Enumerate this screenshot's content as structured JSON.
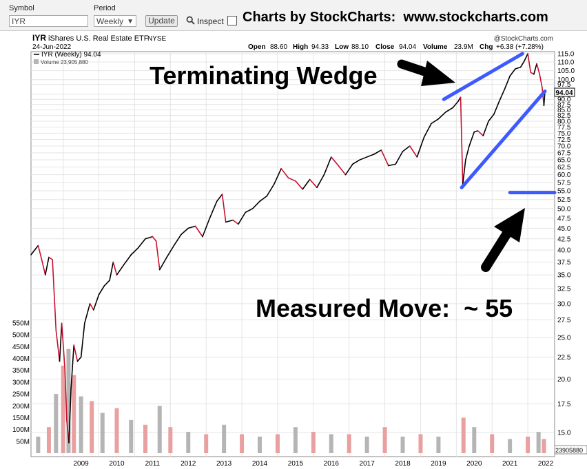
{
  "toolbar": {
    "symbol_label": "Symbol",
    "symbol_value": "IYR",
    "period_label": "Period",
    "period_value": "Weekly",
    "update_label": "Update",
    "inspect_label": "Inspect",
    "brand_text": "Charts by StockCharts:  www.stockcharts.com"
  },
  "header": {
    "ticker": "IYR",
    "name": "iShares U.S. Real Estate ETF",
    "exchange": "NYSE",
    "date": "24-Jun-2022",
    "copyright": "@StockCharts.com",
    "open_label": "Open",
    "open": "88.60",
    "high_label": "High",
    "high": "94.33",
    "low_label": "Low",
    "low": "88.10",
    "close_label": "Close",
    "close": "94.04",
    "volume_label": "Volume",
    "volume": "23.9M",
    "chg_label": "Chg",
    "chg": "+6.38 (+7.28%)",
    "legend_price": "IYR (Weekly) 94.04",
    "legend_volume": "Volume 23,905,880"
  },
  "annotations": {
    "wedge_title": "Terminating Wedge",
    "measured_move": "Measured Move:  ~ 55"
  },
  "colors": {
    "up": "#000000",
    "down": "#c8102e",
    "trendline": "#3d5afe",
    "volume_up": "#b5b5b5",
    "volume_down": "#e8a0a0"
  },
  "chart_data": {
    "type": "line",
    "title": "IYR iShares U.S. Real Estate ETF NYSE",
    "scale": "log",
    "price_ticks": [
      "115.0",
      "110.0",
      "105.0",
      "100.0",
      "97.5",
      "92.5",
      "90.0",
      "87.5",
      "85.0",
      "82.5",
      "80.0",
      "77.5",
      "75.0",
      "72.5",
      "70.0",
      "67.5",
      "65.0",
      "62.5",
      "60.0",
      "57.5",
      "55.0",
      "52.5",
      "50.0",
      "47.5",
      "45.0",
      "42.5",
      "40.0",
      "37.5",
      "35.0",
      "32.5",
      "30.0",
      "27.5",
      "25.0",
      "22.5",
      "20.0",
      "17.5",
      "15.0"
    ],
    "last_price_label": "94.04",
    "volume_ticks": [
      "550M",
      "500M",
      "450M",
      "400M",
      "350M",
      "300M",
      "250M",
      "200M",
      "150M",
      "100M",
      "50M"
    ],
    "volume_last_label": "23905880",
    "x_ticks": [
      "2009",
      "2010",
      "2011",
      "2012",
      "2013",
      "2014",
      "2015",
      "2016",
      "2017",
      "2018",
      "2019",
      "2020",
      "2021",
      "2022"
    ],
    "series": [
      {
        "values": [
          {
            "x": 2008.1,
            "y": 39.0
          },
          {
            "x": 2008.3,
            "y": 41.0
          },
          {
            "x": 2008.4,
            "y": 38.0
          },
          {
            "x": 2008.5,
            "y": 35.0
          },
          {
            "x": 2008.6,
            "y": 38.5
          },
          {
            "x": 2008.7,
            "y": 38.0
          },
          {
            "x": 2008.8,
            "y": 26.0
          },
          {
            "x": 2008.9,
            "y": 22.0
          },
          {
            "x": 2008.96,
            "y": 27.0
          },
          {
            "x": 2009.05,
            "y": 21.0
          },
          {
            "x": 2009.1,
            "y": 16.0
          },
          {
            "x": 2009.16,
            "y": 14.2
          },
          {
            "x": 2009.22,
            "y": 19.0
          },
          {
            "x": 2009.3,
            "y": 24.0
          },
          {
            "x": 2009.4,
            "y": 22.0
          },
          {
            "x": 2009.5,
            "y": 22.5
          },
          {
            "x": 2009.6,
            "y": 27.0
          },
          {
            "x": 2009.75,
            "y": 30.0
          },
          {
            "x": 2009.85,
            "y": 29.0
          },
          {
            "x": 2010.0,
            "y": 31.5
          },
          {
            "x": 2010.15,
            "y": 33.0
          },
          {
            "x": 2010.3,
            "y": 34.0
          },
          {
            "x": 2010.4,
            "y": 37.5
          },
          {
            "x": 2010.5,
            "y": 35.0
          },
          {
            "x": 2010.7,
            "y": 37.0
          },
          {
            "x": 2010.9,
            "y": 39.0
          },
          {
            "x": 2011.1,
            "y": 40.5
          },
          {
            "x": 2011.3,
            "y": 42.5
          },
          {
            "x": 2011.5,
            "y": 43.0
          },
          {
            "x": 2011.6,
            "y": 42.0
          },
          {
            "x": 2011.7,
            "y": 36.0
          },
          {
            "x": 2011.9,
            "y": 38.5
          },
          {
            "x": 2012.1,
            "y": 41.0
          },
          {
            "x": 2012.3,
            "y": 43.5
          },
          {
            "x": 2012.5,
            "y": 45.0
          },
          {
            "x": 2012.7,
            "y": 45.5
          },
          {
            "x": 2012.9,
            "y": 43.0
          },
          {
            "x": 2013.1,
            "y": 47.5
          },
          {
            "x": 2013.3,
            "y": 52.0
          },
          {
            "x": 2013.45,
            "y": 54.0
          },
          {
            "x": 2013.55,
            "y": 46.5
          },
          {
            "x": 2013.75,
            "y": 47.0
          },
          {
            "x": 2013.9,
            "y": 46.0
          },
          {
            "x": 2014.1,
            "y": 49.0
          },
          {
            "x": 2014.3,
            "y": 50.0
          },
          {
            "x": 2014.5,
            "y": 52.0
          },
          {
            "x": 2014.7,
            "y": 53.5
          },
          {
            "x": 2014.9,
            "y": 57.0
          },
          {
            "x": 2015.1,
            "y": 62.0
          },
          {
            "x": 2015.3,
            "y": 59.0
          },
          {
            "x": 2015.5,
            "y": 58.0
          },
          {
            "x": 2015.7,
            "y": 55.5
          },
          {
            "x": 2015.9,
            "y": 58.5
          },
          {
            "x": 2016.1,
            "y": 56.0
          },
          {
            "x": 2016.3,
            "y": 60.0
          },
          {
            "x": 2016.5,
            "y": 66.0
          },
          {
            "x": 2016.7,
            "y": 63.0
          },
          {
            "x": 2016.9,
            "y": 60.0
          },
          {
            "x": 2017.1,
            "y": 63.5
          },
          {
            "x": 2017.3,
            "y": 65.0
          },
          {
            "x": 2017.5,
            "y": 66.0
          },
          {
            "x": 2017.7,
            "y": 67.0
          },
          {
            "x": 2017.9,
            "y": 68.5
          },
          {
            "x": 2018.1,
            "y": 63.0
          },
          {
            "x": 2018.3,
            "y": 63.5
          },
          {
            "x": 2018.5,
            "y": 68.0
          },
          {
            "x": 2018.7,
            "y": 70.0
          },
          {
            "x": 2018.9,
            "y": 66.0
          },
          {
            "x": 2019.1,
            "y": 73.5
          },
          {
            "x": 2019.3,
            "y": 79.0
          },
          {
            "x": 2019.5,
            "y": 81.0
          },
          {
            "x": 2019.7,
            "y": 84.0
          },
          {
            "x": 2019.9,
            "y": 86.0
          },
          {
            "x": 2020.05,
            "y": 89.0
          },
          {
            "x": 2020.12,
            "y": 91.0
          },
          {
            "x": 2020.18,
            "y": 57.0
          },
          {
            "x": 2020.26,
            "y": 65.0
          },
          {
            "x": 2020.36,
            "y": 70.0
          },
          {
            "x": 2020.5,
            "y": 75.5
          },
          {
            "x": 2020.6,
            "y": 76.0
          },
          {
            "x": 2020.75,
            "y": 74.0
          },
          {
            "x": 2020.9,
            "y": 80.0
          },
          {
            "x": 2021.05,
            "y": 83.0
          },
          {
            "x": 2021.2,
            "y": 89.0
          },
          {
            "x": 2021.35,
            "y": 95.0
          },
          {
            "x": 2021.5,
            "y": 102.0
          },
          {
            "x": 2021.65,
            "y": 106.0
          },
          {
            "x": 2021.8,
            "y": 107.0
          },
          {
            "x": 2021.9,
            "y": 110.5
          },
          {
            "x": 2022.0,
            "y": 115.0
          },
          {
            "x": 2022.08,
            "y": 104.0
          },
          {
            "x": 2022.17,
            "y": 103.0
          },
          {
            "x": 2022.25,
            "y": 109.0
          },
          {
            "x": 2022.33,
            "y": 103.0
          },
          {
            "x": 2022.4,
            "y": 96.0
          },
          {
            "x": 2022.45,
            "y": 87.0
          },
          {
            "x": 2022.48,
            "y": 94.04
          }
        ]
      }
    ],
    "volume_series": [
      {
        "x": 2008.3,
        "v": 70
      },
      {
        "x": 2008.6,
        "v": 110
      },
      {
        "x": 2008.8,
        "v": 250
      },
      {
        "x": 2009.0,
        "v": 370
      },
      {
        "x": 2009.15,
        "v": 440
      },
      {
        "x": 2009.3,
        "v": 330
      },
      {
        "x": 2009.5,
        "v": 240
      },
      {
        "x": 2009.8,
        "v": 220
      },
      {
        "x": 2010.1,
        "v": 170
      },
      {
        "x": 2010.5,
        "v": 190
      },
      {
        "x": 2010.9,
        "v": 140
      },
      {
        "x": 2011.3,
        "v": 120
      },
      {
        "x": 2011.7,
        "v": 200
      },
      {
        "x": 2012.0,
        "v": 110
      },
      {
        "x": 2012.5,
        "v": 90
      },
      {
        "x": 2013.0,
        "v": 80
      },
      {
        "x": 2013.5,
        "v": 120
      },
      {
        "x": 2014.0,
        "v": 80
      },
      {
        "x": 2014.5,
        "v": 70
      },
      {
        "x": 2015.0,
        "v": 80
      },
      {
        "x": 2015.5,
        "v": 110
      },
      {
        "x": 2016.0,
        "v": 90
      },
      {
        "x": 2016.5,
        "v": 80
      },
      {
        "x": 2017.0,
        "v": 80
      },
      {
        "x": 2017.5,
        "v": 70
      },
      {
        "x": 2018.0,
        "v": 110
      },
      {
        "x": 2018.5,
        "v": 70
      },
      {
        "x": 2019.0,
        "v": 80
      },
      {
        "x": 2019.5,
        "v": 70
      },
      {
        "x": 2020.2,
        "v": 150
      },
      {
        "x": 2020.5,
        "v": 110
      },
      {
        "x": 2021.0,
        "v": 80
      },
      {
        "x": 2021.5,
        "v": 60
      },
      {
        "x": 2022.0,
        "v": 70
      },
      {
        "x": 2022.3,
        "v": 90
      },
      {
        "x": 2022.45,
        "v": 60
      }
    ],
    "trendlines": [
      {
        "x1": 2019.65,
        "y1": 90.0,
        "x2": 2021.85,
        "y2": 115.0
      },
      {
        "x1": 2020.15,
        "y1": 56.0,
        "x2": 2022.48,
        "y2": 94.0
      },
      {
        "x1": 2021.5,
        "y1": 54.5,
        "x2": 2022.75,
        "y2": 54.5
      }
    ]
  }
}
